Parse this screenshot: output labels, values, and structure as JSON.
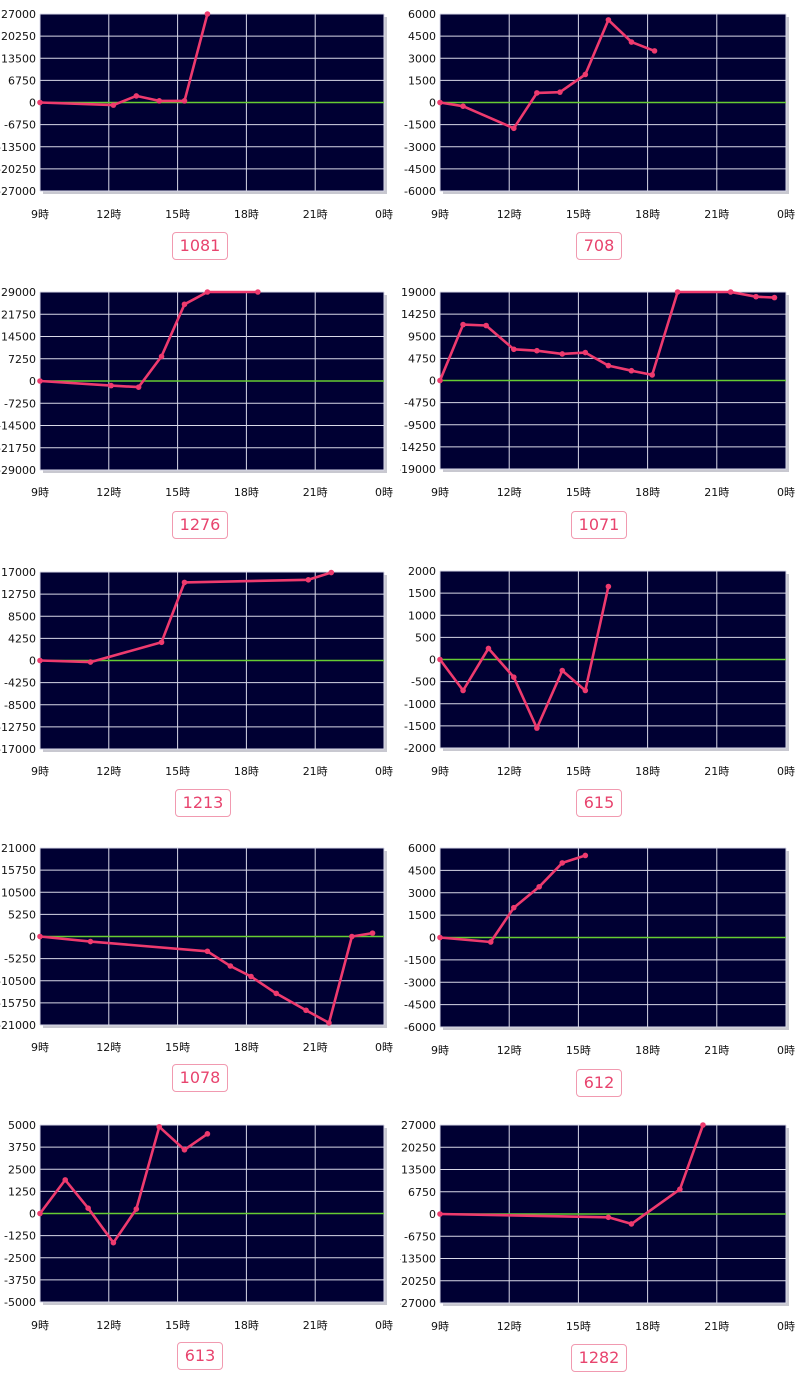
{
  "colors": {
    "plot_bg": "#000033",
    "grid": "#d8d8e8",
    "zero_line": "#66cc33",
    "series": "#ee3a6e",
    "label_text": "#e8446e",
    "label_border": "#f19ab0"
  },
  "x_ticks": [
    "9時",
    "12時",
    "15時",
    "18時",
    "21時",
    "0時"
  ],
  "chart_data": [
    {
      "type": "line",
      "label": "1081",
      "yticks": [
        "27000",
        "20250",
        "13500",
        "6750",
        "0",
        "-6750",
        "-13500",
        "-20250",
        "-27000"
      ],
      "ylim": [
        -27000,
        27000
      ],
      "xlim": [
        9,
        24
      ],
      "points": [
        [
          9,
          0
        ],
        [
          12.2,
          -800
        ],
        [
          13.2,
          2000
        ],
        [
          14.2,
          500
        ],
        [
          15.3,
          500
        ],
        [
          16.3,
          27000
        ]
      ]
    },
    {
      "type": "line",
      "label": "708",
      "yticks": [
        "6000",
        "4500",
        "3000",
        "1500",
        "0",
        "-1500",
        "-3000",
        "-4500",
        "-6000"
      ],
      "ylim": [
        -6000,
        6000
      ],
      "xlim": [
        9,
        24
      ],
      "points": [
        [
          9,
          0
        ],
        [
          10,
          -250
        ],
        [
          12.2,
          -1750
        ],
        [
          13.2,
          650
        ],
        [
          14.2,
          700
        ],
        [
          15.3,
          1900
        ],
        [
          16.3,
          5600
        ],
        [
          17.3,
          4100
        ],
        [
          18.3,
          3500
        ]
      ]
    },
    {
      "type": "line",
      "label": "1276",
      "yticks": [
        "29000",
        "21750",
        "14500",
        "7250",
        "0",
        "-7250",
        "-14500",
        "-21750",
        "-29000"
      ],
      "ylim": [
        -29000,
        29000
      ],
      "xlim": [
        9,
        24
      ],
      "points": [
        [
          9,
          0
        ],
        [
          12.1,
          -1500
        ],
        [
          13.3,
          -2000
        ],
        [
          14.3,
          8000
        ],
        [
          15.3,
          25000
        ],
        [
          16.3,
          29000
        ],
        [
          18.5,
          29000
        ]
      ]
    },
    {
      "type": "line",
      "label": "1071",
      "yticks": [
        "19000",
        "14250",
        "9500",
        "4750",
        "0",
        "-4750",
        "-9500",
        "-14250",
        "-19000"
      ],
      "ylim": [
        -19000,
        19000
      ],
      "xlim": [
        9,
        24
      ],
      "points": [
        [
          9,
          0
        ],
        [
          10,
          12000
        ],
        [
          11,
          11800
        ],
        [
          12.2,
          6700
        ],
        [
          13.2,
          6400
        ],
        [
          14.3,
          5700
        ],
        [
          15.3,
          6000
        ],
        [
          16.3,
          3200
        ],
        [
          17.3,
          2100
        ],
        [
          18.2,
          1200
        ],
        [
          19.3,
          19000
        ],
        [
          21.6,
          19000
        ],
        [
          22.7,
          18000
        ],
        [
          23.5,
          17800
        ]
      ]
    },
    {
      "type": "line",
      "label": "1213",
      "yticks": [
        "17000",
        "12750",
        "8500",
        "4250",
        "0",
        "-4250",
        "-8500",
        "-12750",
        "-17000"
      ],
      "ylim": [
        -17000,
        17000
      ],
      "xlim": [
        9,
        24
      ],
      "points": [
        [
          9,
          0
        ],
        [
          11.2,
          -300
        ],
        [
          14.3,
          3500
        ],
        [
          15.3,
          15000
        ],
        [
          20.7,
          15500
        ],
        [
          21.7,
          16900
        ]
      ]
    },
    {
      "type": "line",
      "label": "615",
      "yticks": [
        "2000",
        "1500",
        "1000",
        "500",
        "0",
        "-500",
        "-1000",
        "-1500",
        "-2000"
      ],
      "ylim": [
        -2000,
        2000
      ],
      "xlim": [
        9,
        24
      ],
      "points": [
        [
          9,
          0
        ],
        [
          10,
          -700
        ],
        [
          11.1,
          250
        ],
        [
          12.2,
          -400
        ],
        [
          13.2,
          -1550
        ],
        [
          14.3,
          -250
        ],
        [
          15.3,
          -700
        ],
        [
          16.3,
          1650
        ]
      ]
    },
    {
      "type": "line",
      "label": "1078",
      "yticks": [
        "21000",
        "15750",
        "10500",
        "5250",
        "0",
        "-5250",
        "-10500",
        "-15750",
        "-21000"
      ],
      "ylim": [
        -21000,
        21000
      ],
      "xlim": [
        9,
        24
      ],
      "points": [
        [
          9,
          0
        ],
        [
          11.2,
          -1200
        ],
        [
          16.3,
          -3500
        ],
        [
          17.3,
          -7000
        ],
        [
          18.2,
          -9500
        ],
        [
          19.3,
          -13500
        ],
        [
          20.6,
          -17500
        ],
        [
          21.6,
          -20500
        ],
        [
          22.6,
          0
        ],
        [
          23.5,
          800
        ]
      ]
    },
    {
      "type": "line",
      "label": "612",
      "yticks": [
        "6000",
        "4500",
        "3000",
        "1500",
        "0",
        "-1500",
        "-3000",
        "-4500",
        "-6000"
      ],
      "ylim": [
        -6000,
        6000
      ],
      "xlim": [
        9,
        24
      ],
      "points": [
        [
          9,
          0
        ],
        [
          11.2,
          -300
        ],
        [
          12.2,
          2000
        ],
        [
          13.3,
          3400
        ],
        [
          14.3,
          5000
        ],
        [
          15.3,
          5500
        ]
      ]
    },
    {
      "type": "line",
      "label": "613",
      "yticks": [
        "5000",
        "3750",
        "2500",
        "1250",
        "0",
        "-1250",
        "-2500",
        "-3750",
        "-5000"
      ],
      "ylim": [
        -5000,
        5000
      ],
      "xlim": [
        9,
        24
      ],
      "points": [
        [
          9,
          0
        ],
        [
          10.1,
          1900
        ],
        [
          11.1,
          300
        ],
        [
          12.2,
          -1650
        ],
        [
          13.2,
          250
        ],
        [
          14.2,
          4900
        ],
        [
          15.3,
          3600
        ],
        [
          16.3,
          4500
        ]
      ]
    },
    {
      "type": "line",
      "label": "1282",
      "yticks": [
        "27000",
        "20250",
        "13500",
        "6750",
        "0",
        "-6750",
        "-13500",
        "-20250",
        "-27000"
      ],
      "ylim": [
        -27000,
        27000
      ],
      "xlim": [
        9,
        24
      ],
      "points": [
        [
          9,
          0
        ],
        [
          16.3,
          -1000
        ],
        [
          17.3,
          -3000
        ],
        [
          19.4,
          7500
        ],
        [
          20.4,
          27000
        ]
      ]
    }
  ]
}
